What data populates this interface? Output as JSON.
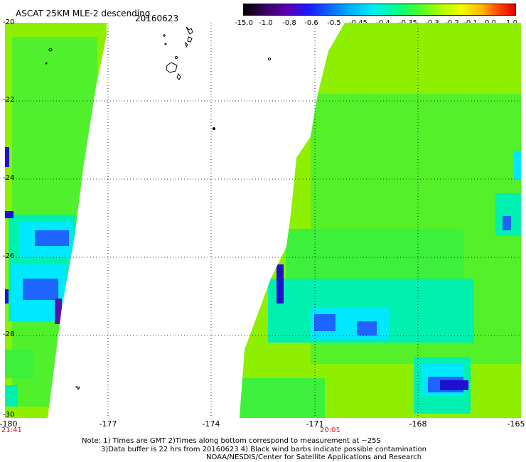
{
  "header": {
    "title": "ASCAT 25KM MLE-2 descending",
    "date": "20160623"
  },
  "colorbar": {
    "ticks": [
      "-15.0",
      "-1.0",
      "-0.8",
      "-0.6",
      "-0.5",
      "-0.45",
      "-0.4",
      "-0.35",
      "-0.3",
      "-0.2",
      "-0.1",
      "0.0",
      "1.0"
    ],
    "colors": [
      "#000000",
      "#3a0060",
      "#5a00b0",
      "#1a1aff",
      "#0a6cff",
      "#00b8ff",
      "#00f0f0",
      "#00ff90",
      "#40ff30",
      "#a8ff00",
      "#f0ff00",
      "#ffb000",
      "#e00000"
    ]
  },
  "map": {
    "lat_labels": [
      "-20",
      "-22",
      "-24",
      "-26",
      "-28",
      "-30"
    ],
    "lon_labels": [
      "-180",
      "-177",
      "-174",
      "-171",
      "-168",
      "-165"
    ],
    "times": [
      "21:41",
      "20:01"
    ],
    "time_color": "#d01010",
    "swath_colors": {
      "base": "#8ef000",
      "green": "#3cf03c",
      "teal": "#00f0b0",
      "cyan": "#00e8ff",
      "blue": "#1e64ff",
      "navy": "#2010d0",
      "purple": "#5a10b0"
    }
  },
  "notes": {
    "line1": "Note: 1) Times are GMT 2)Times along bottom correspond to measurement at ~25S",
    "line2": "3)Data buffer is 22 hrs from 20160623 4) Black wind barbs indicate possible contamination",
    "line3": "NOAA/NESDIS/Center for Satellite Applications and Research"
  }
}
